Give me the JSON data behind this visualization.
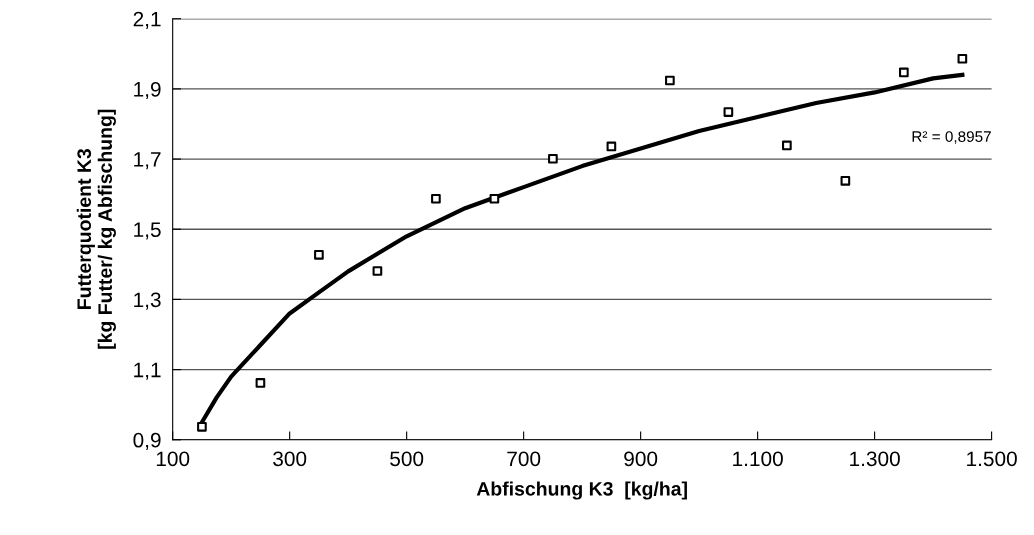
{
  "chart_data": {
    "type": "scatter",
    "xlabel": "Abfischung K3  [kg/ha]",
    "ylabel": "Futterquotient K3\n[kg Futter/ kg Abfischung]",
    "xlim": [
      100,
      1500
    ],
    "xticks": [
      100,
      300,
      500,
      700,
      900,
      {
        "value": 1100,
        "label": "1.100"
      },
      {
        "value": 1300,
        "label": "1.300"
      },
      {
        "value": 1500,
        "label": "1.500"
      }
    ],
    "ylim": [
      0.9,
      2.1
    ],
    "yticks": [
      {
        "value": 0.9,
        "label": "0,9"
      },
      {
        "value": 1.1,
        "label": "1,1"
      },
      {
        "value": 1.3,
        "label": "1,3"
      },
      {
        "value": 1.5,
        "label": "1,5"
      },
      {
        "value": 1.7,
        "label": "1,7"
      },
      {
        "value": 1.9,
        "label": "1,9"
      },
      {
        "value": 2.1,
        "label": "2,1"
      }
    ],
    "grid": "y",
    "legend": false,
    "series": [
      {
        "marker": "square",
        "color": "#000000",
        "x": [
          150,
          250,
          350,
          450,
          550,
          650,
          750,
          850,
          950,
          1050,
          1150,
          1250,
          1350,
          1450
        ],
        "values": [
          0.937,
          1.062,
          1.427,
          1.381,
          1.587,
          1.587,
          1.701,
          1.736,
          1.924,
          1.834,
          1.739,
          1.638,
          1.947,
          1.986
        ]
      },
      {
        "type": "line",
        "marker": "none",
        "line_style": "solid",
        "color": "#000000",
        "x": [
          150,
          175,
          200,
          250,
          300,
          350,
          400,
          450,
          500,
          600,
          700,
          800,
          900,
          1000,
          1100,
          1200,
          1300,
          1400,
          1450
        ],
        "values": [
          0.95,
          1.02,
          1.08,
          1.17,
          1.26,
          1.32,
          1.38,
          1.43,
          1.48,
          1.56,
          1.62,
          1.68,
          1.73,
          1.78,
          1.82,
          1.86,
          1.89,
          1.93,
          1.94
        ]
      }
    ],
    "annotations": [
      "R² = 0,8957"
    ]
  }
}
